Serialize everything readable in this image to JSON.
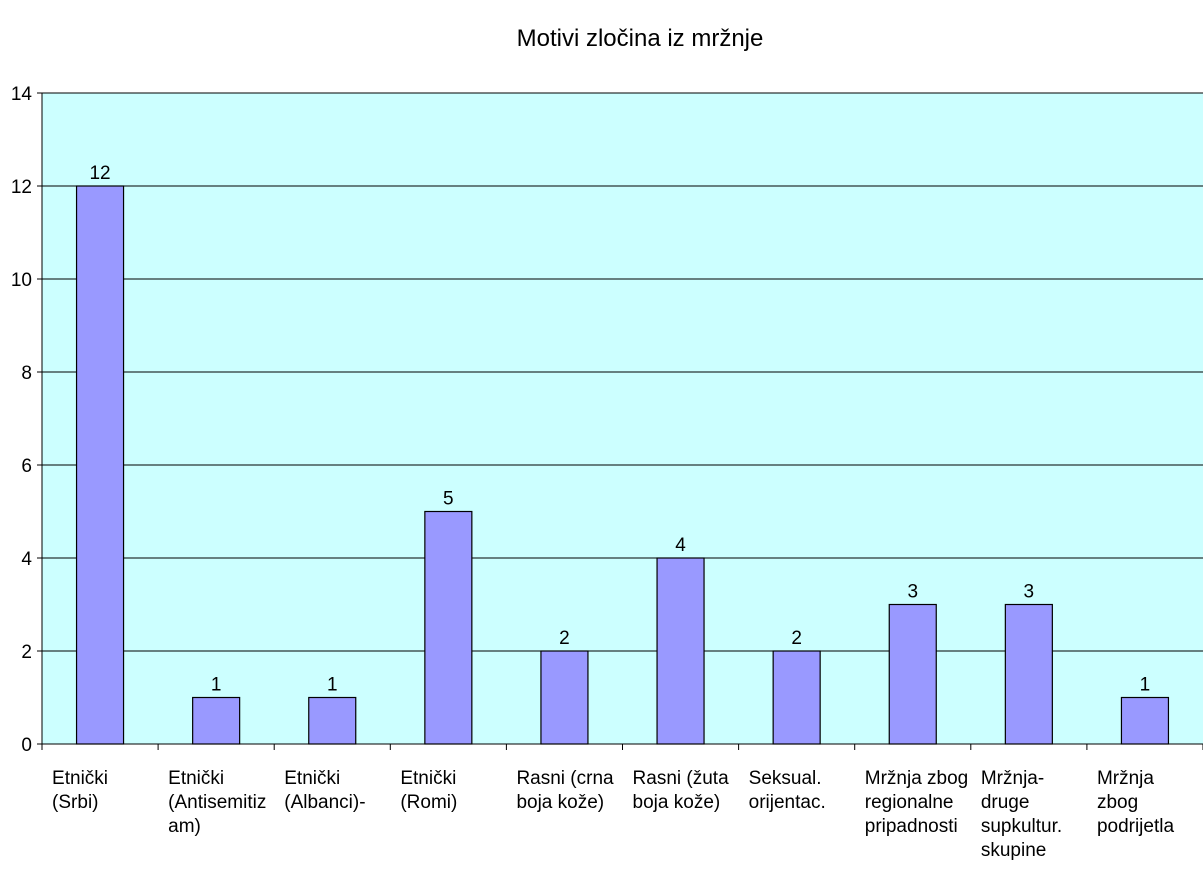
{
  "chart_data": {
    "type": "bar",
    "title": "Motivi zločina iz mržnje",
    "categories": [
      "Etnički\n(Srbi)",
      "Etnički\n(Antisemitiz\nam)",
      "Etnički\n(Albanci)-",
      "Etnički\n(Romi)",
      "Rasni (crna\nboja kože)",
      "Rasni (žuta\nboja kože)",
      "Seksual.\norijentac.",
      "Mržnja zbog\nregionalne\npripadnosti",
      "Mržnja-\ndruge\nsupkultur.\nskupine",
      "Mržnja\nzbog\npodrijetla"
    ],
    "values": [
      12,
      1,
      1,
      5,
      2,
      4,
      2,
      3,
      3,
      1
    ],
    "color": "#9999ff",
    "background": "#ccffff",
    "ylim": [
      0,
      14
    ],
    "yticks": [
      0,
      2,
      4,
      6,
      8,
      10,
      12,
      14
    ],
    "grid": true,
    "data_labels": true
  }
}
